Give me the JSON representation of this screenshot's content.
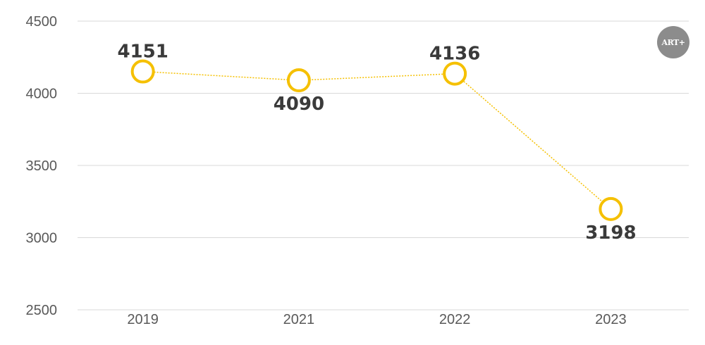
{
  "brand": {
    "logo_text": "ART+"
  },
  "chart_data": {
    "type": "line",
    "categories": [
      "2019",
      "2021",
      "2022",
      "2023"
    ],
    "series": [
      {
        "values": [
          4151,
          4090,
          4136,
          3198
        ],
        "color": "#f5c000"
      }
    ],
    "data_labels": [
      "4151",
      "4090",
      "4136",
      "3198"
    ],
    "ylim": [
      2500,
      4500
    ],
    "y_ticks": [
      "2500",
      "3000",
      "3500",
      "4000",
      "4500"
    ],
    "grid": true,
    "title": "",
    "xlabel": "",
    "ylabel": ""
  }
}
